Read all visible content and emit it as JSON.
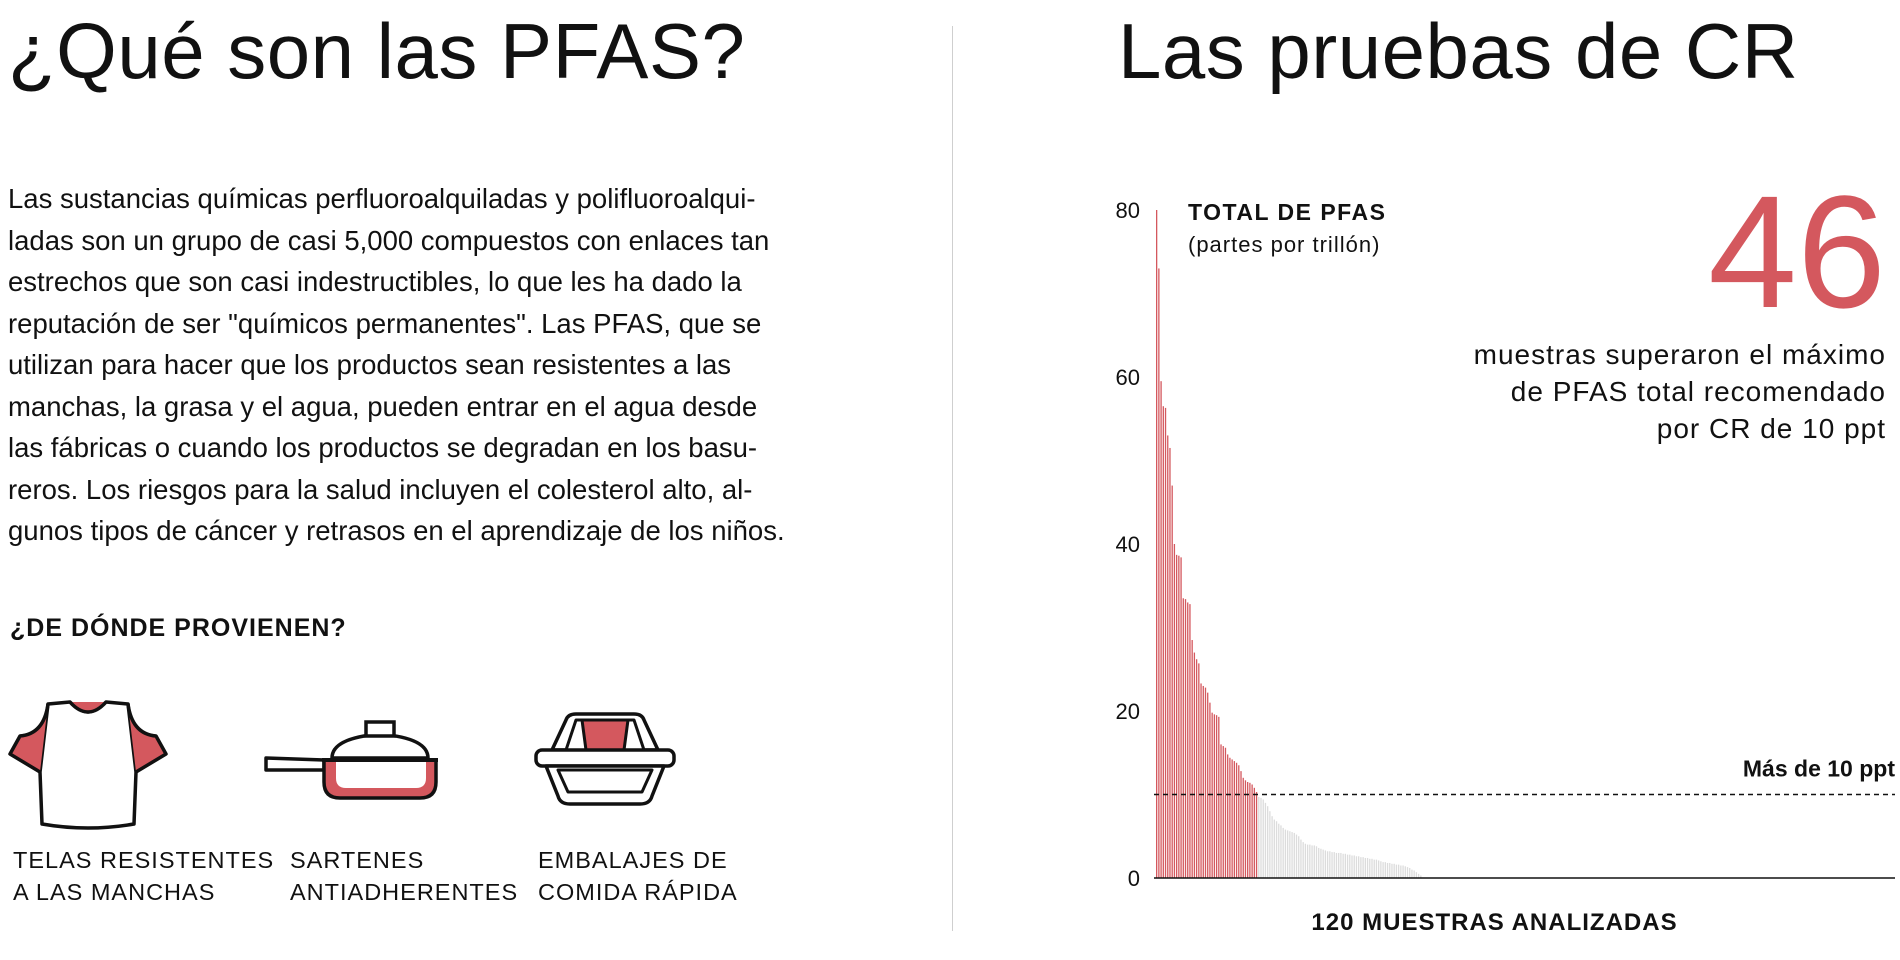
{
  "left": {
    "title": "¿Qué son las PFAS?",
    "intro_lines": [
      "Las sustancias químicas perfluoroalquiladas y polifluoroalqui-",
      "ladas son un grupo de casi 5,000 compuestos con enlaces tan",
      "estrechos que son casi indestructibles, lo que les ha dado la",
      "reputación de ser \"químicos permanentes\". Las PFAS, que se",
      "utilizan para hacer que los productos sean resistentes a las",
      "manchas, la grasa y el agua, pueden entrar en el agua desde",
      "las fábricas o cuando los productos se degradan en los basu-",
      "reros. Los riesgos para la salud incluyen el colesterol alto, al-",
      "gunos tipos de cáncer y retrasos en el aprendizaje de los niños."
    ],
    "sources_heading": "¿DE DÓNDE PROVIENEN?",
    "sources": [
      {
        "icon": "t-shirt-icon",
        "lines": [
          "TELAS RESISTENTES",
          "A LAS MANCHAS"
        ]
      },
      {
        "icon": "frying-pan-icon",
        "lines": [
          "SARTENES",
          "ANTIADHERENTES"
        ]
      },
      {
        "icon": "takeout-container-icon",
        "lines": [
          "EMBALAJES DE",
          "COMIDA RÁPIDA"
        ]
      }
    ]
  },
  "right": {
    "title": "Las pruebas de CR",
    "big_number": "46",
    "big_caption_lines": [
      "muestras superaron el máximo",
      "de PFAS total recomendado",
      "por CR de 10 ppt"
    ]
  },
  "colors": {
    "accent": "#d4585e",
    "below_threshold": "#dcdcdc",
    "text": "#111111"
  },
  "chart_data": {
    "type": "bar",
    "title": "TOTAL DE PFAS",
    "subtitle": "(partes por trillón)",
    "xlabel": "120 MUESTRAS ANALIZADAS",
    "ylabel": "",
    "ylim": [
      0,
      80
    ],
    "yticks": [
      0,
      20,
      40,
      60,
      80
    ],
    "threshold": 10,
    "threshold_label": "Más de 10 ppt",
    "grid": false,
    "values": [
      80.0,
      73.0,
      59.5,
      56.5,
      56.3,
      53.0,
      51.5,
      47.0,
      40.0,
      38.7,
      38.6,
      38.4,
      33.5,
      33.4,
      33.0,
      32.8,
      28.5,
      27.0,
      26.2,
      25.7,
      23.3,
      23.0,
      22.8,
      22.2,
      21.0,
      19.8,
      19.6,
      19.5,
      19.3,
      16.0,
      15.8,
      15.6,
      14.8,
      14.4,
      14.2,
      14.0,
      13.8,
      13.5,
      12.8,
      12.0,
      11.7,
      11.5,
      11.4,
      11.2,
      10.8,
      10.3,
      9.7,
      9.6,
      9.4,
      9.0,
      8.6,
      8.0,
      7.4,
      7.0,
      6.8,
      6.5,
      6.3,
      6.0,
      5.8,
      5.7,
      5.6,
      5.5,
      5.4,
      5.2,
      5.0,
      4.6,
      4.3,
      4.1,
      4.0,
      4.0,
      3.9,
      3.9,
      3.8,
      3.6,
      3.5,
      3.4,
      3.3,
      3.2,
      3.2,
      3.1,
      3.1,
      3.0,
      3.0,
      3.0,
      2.9,
      2.9,
      2.8,
      2.8,
      2.7,
      2.7,
      2.6,
      2.6,
      2.5,
      2.5,
      2.4,
      2.4,
      2.3,
      2.3,
      2.2,
      2.2,
      2.1,
      2.0,
      1.9,
      1.9,
      1.8,
      1.8,
      1.7,
      1.7,
      1.6,
      1.6,
      1.5,
      1.5,
      1.4,
      1.3,
      1.2,
      1.0,
      0.9,
      0.7,
      0.5,
      0.3
    ]
  }
}
